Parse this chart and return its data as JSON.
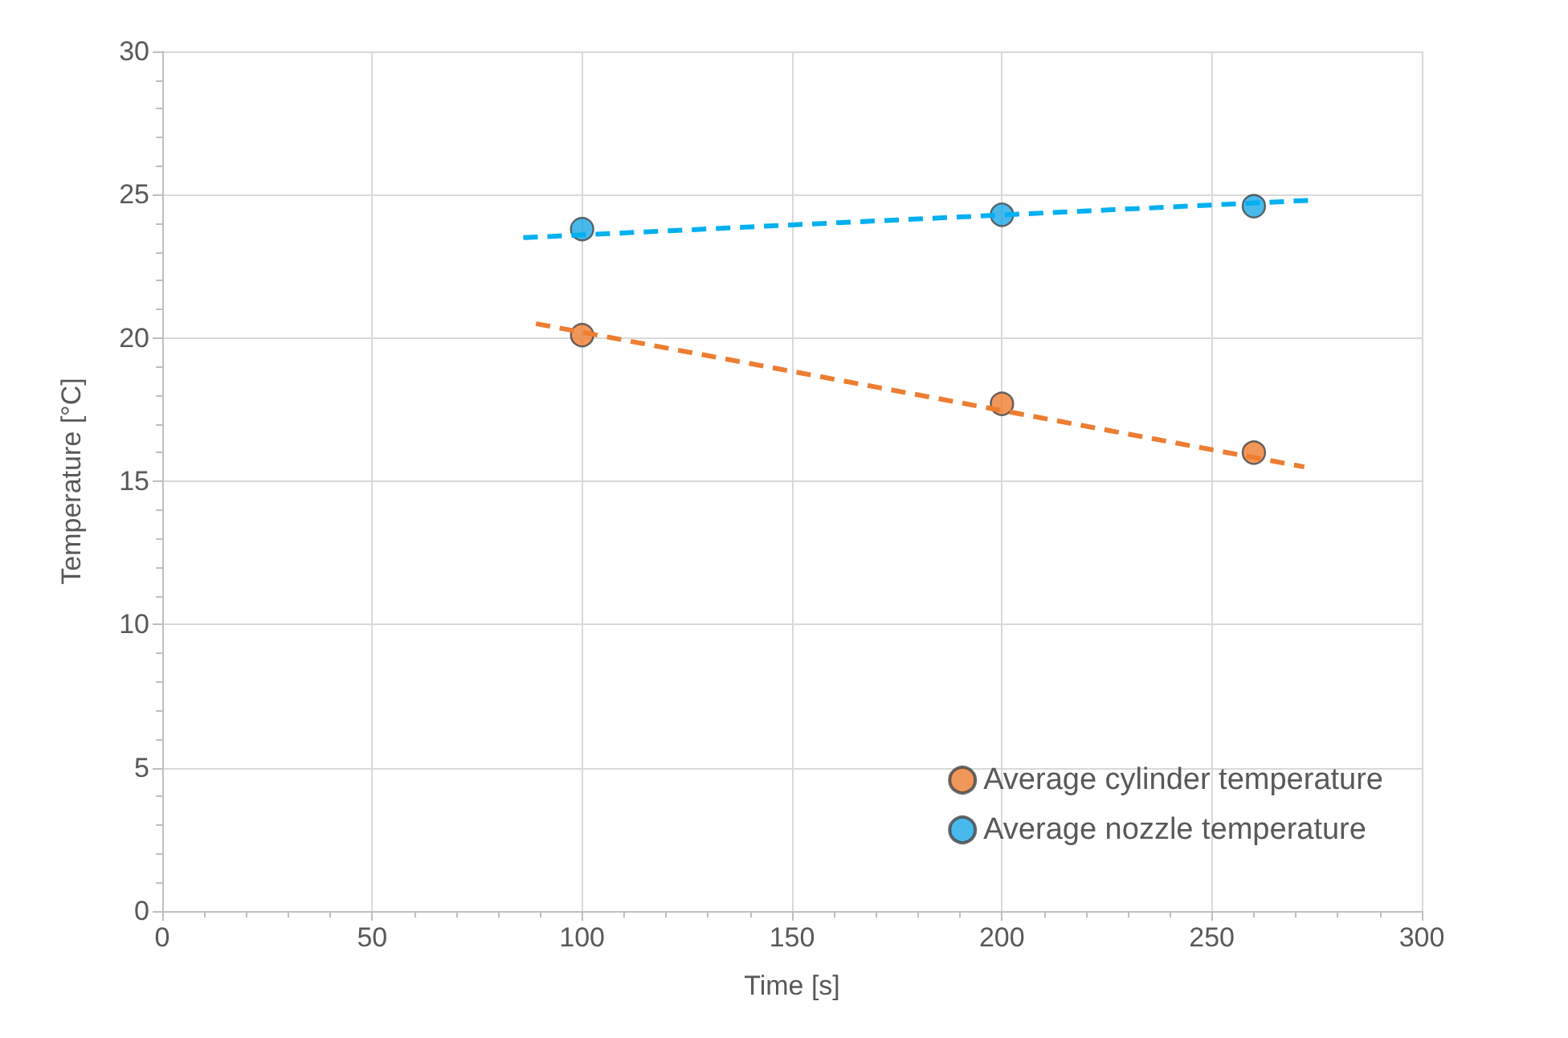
{
  "chart_data": {
    "type": "scatter",
    "xlabel": "Time [s]",
    "ylabel": "Temperature [°C]",
    "xlim": [
      0,
      300
    ],
    "xticks": [
      0,
      50,
      100,
      150,
      200,
      250,
      300
    ],
    "ylim": [
      0,
      30
    ],
    "yticks": [
      0,
      5,
      10,
      15,
      20,
      25,
      30
    ],
    "grid": true,
    "legend": "bottom right",
    "marker": "circle",
    "series": [
      {
        "name": "Average cylinder temperature",
        "color": "#ed7d31",
        "x": [
          100,
          200,
          260
        ],
        "values": [
          20.1,
          17.7,
          16.0
        ]
      },
      {
        "name": "Average nozzle temperature",
        "color": "#1aa7e6",
        "x": [
          100,
          200,
          260
        ],
        "values": [
          23.8,
          24.3,
          24.6
        ]
      },
      {
        "type": "line",
        "color": "#ed7d31",
        "line_style": "dashed",
        "marker": "none",
        "x": [
          89,
          272
        ],
        "values": [
          20.5,
          15.5
        ]
      },
      {
        "type": "line",
        "color": "#00b0f0",
        "line_style": "dashed",
        "marker": "none",
        "x": [
          86,
          273
        ],
        "values": [
          23.5,
          24.8
        ]
      }
    ]
  }
}
